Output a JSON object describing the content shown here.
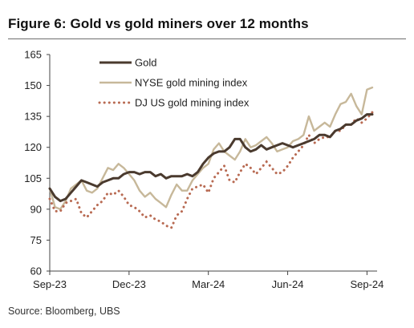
{
  "figure": {
    "title": "Figure 6: Gold vs gold miners over 12 months",
    "source": "Source: Bloomberg, UBS"
  },
  "colors": {
    "gold": "#4a3a2e",
    "nyse": "#c7b89a",
    "dj": "#b86a52",
    "axis": "#444444"
  },
  "chart_data": {
    "type": "line",
    "title": "Figure 6: Gold vs gold miners over 12 months",
    "xlabel": "",
    "ylabel": "",
    "x_range": [
      "Sep-23",
      "Sep-24"
    ],
    "x_ticks": [
      "Sep-23",
      "Dec-23",
      "Mar-24",
      "Jun-24",
      "Sep-24"
    ],
    "ylim": [
      60,
      165
    ],
    "y_ticks": [
      60,
      75,
      90,
      105,
      120,
      135,
      150,
      165
    ],
    "grid": false,
    "legend_position": "top-center",
    "x_month_index": [
      0,
      0.2,
      0.4,
      0.6,
      0.8,
      1,
      1.2,
      1.4,
      1.6,
      1.8,
      2,
      2.2,
      2.4,
      2.6,
      2.8,
      3,
      3.2,
      3.4,
      3.6,
      3.8,
      4,
      4.2,
      4.4,
      4.6,
      4.8,
      5,
      5.2,
      5.4,
      5.6,
      5.8,
      6,
      6.2,
      6.4,
      6.6,
      6.8,
      7,
      7.2,
      7.4,
      7.6,
      7.8,
      8,
      8.2,
      8.4,
      8.6,
      8.8,
      9,
      9.2,
      9.4,
      9.6,
      9.8,
      10,
      10.2,
      10.4,
      10.6,
      10.8,
      11,
      11.2,
      11.4,
      11.6,
      11.8,
      12,
      12.2
    ],
    "series": [
      {
        "name": "Gold",
        "style": "solid",
        "color_key": "gold",
        "values": [
          100,
          96,
          94,
          95,
          98,
          101,
          104,
          103,
          102,
          101,
          103,
          104,
          105,
          105,
          107,
          108,
          108,
          107,
          108,
          108,
          106,
          107,
          105,
          106,
          106,
          106,
          107,
          106,
          108,
          112,
          115,
          117,
          118,
          118,
          120,
          124,
          124,
          120,
          118,
          119,
          121,
          119,
          120,
          121,
          122,
          121,
          120,
          121,
          122,
          123,
          124,
          126,
          126,
          125,
          128,
          129,
          131,
          131,
          133,
          134,
          136,
          136
        ]
      },
      {
        "name": "NYSE gold mining index",
        "style": "solid",
        "color_key": "nyse",
        "values": [
          100,
          91,
          90,
          94,
          100,
          102,
          104,
          99,
          98,
          100,
          105,
          110,
          109,
          112,
          110,
          107,
          104,
          99,
          96,
          98,
          95,
          93,
          91,
          97,
          102,
          99,
          99,
          104,
          107,
          110,
          112,
          119,
          122,
          118,
          116,
          114,
          118,
          124,
          120,
          121,
          123,
          125,
          122,
          118,
          119,
          120,
          123,
          124,
          126,
          135,
          128,
          130,
          132,
          130,
          136,
          141,
          142,
          146,
          140,
          136,
          148,
          149
        ]
      },
      {
        "name": "DJ US gold mining index",
        "style": "dotted",
        "color_key": "dj",
        "values": [
          95,
          89,
          89,
          93,
          94,
          95,
          88,
          86,
          89,
          92,
          94,
          98,
          97,
          99,
          96,
          92,
          91,
          89,
          86,
          87,
          85,
          84,
          82,
          81,
          87,
          89,
          95,
          100,
          101,
          102,
          98,
          105,
          108,
          111,
          104,
          103,
          108,
          112,
          110,
          107,
          110,
          113,
          110,
          107,
          108,
          111,
          115,
          118,
          121,
          126,
          122,
          124,
          125,
          125,
          128,
          128,
          131,
          131,
          134,
          132,
          134,
          137
        ]
      }
    ]
  }
}
